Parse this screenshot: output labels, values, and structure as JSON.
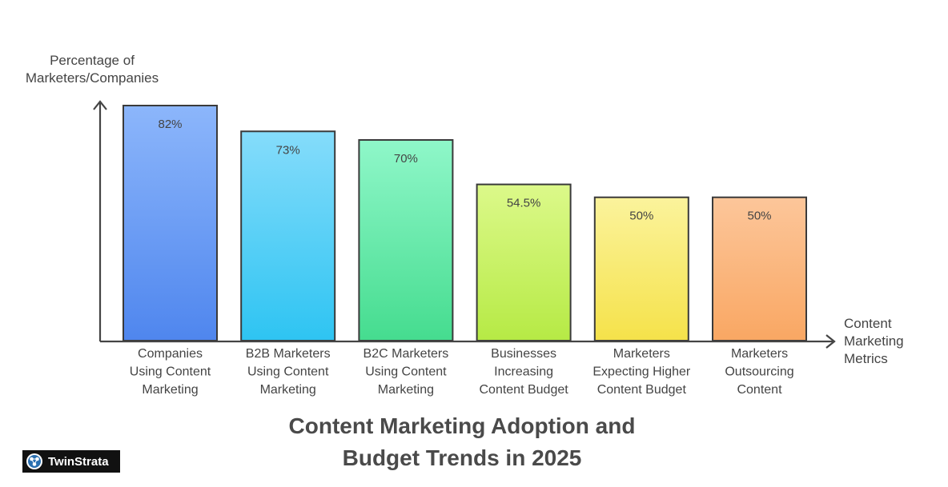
{
  "chart_data": {
    "type": "bar",
    "title": "Content Marketing Adoption and Budget Trends in 2025",
    "ylabel": "Percentage of Marketers/Companies",
    "xlabel": "Content Marketing Metrics",
    "ylim": [
      0,
      82
    ],
    "grid": false,
    "categories": [
      "Companies Using Content Marketing",
      "B2B Marketers Using Content Marketing",
      "B2C Marketers Using Content Marketing",
      "Businesses Increasing Content Budget",
      "Marketers Expecting Higher Content Budget",
      "Marketers Outsourcing Content"
    ],
    "values": [
      82,
      73,
      70,
      54.5,
      50,
      50
    ],
    "value_labels": [
      "82%",
      "73%",
      "70%",
      "54.5%",
      "50%",
      "50%"
    ],
    "category_lines": [
      [
        "Companies",
        "Using Content",
        "Marketing"
      ],
      [
        "B2B Marketers",
        "Using Content",
        "Marketing"
      ],
      [
        "B2C Marketers",
        "Using Content",
        "Marketing"
      ],
      [
        "Businesses",
        "Increasing",
        "Content Budget"
      ],
      [
        "Marketers",
        "Expecting Higher",
        "Content Budget"
      ],
      [
        "Marketers",
        "Outsourcing",
        "Content"
      ]
    ],
    "colors": [
      [
        "#8cb6fb",
        "#4f86ee"
      ],
      [
        "#85dcfb",
        "#2ec4f2"
      ],
      [
        "#8ff7c9",
        "#45dc8f"
      ],
      [
        "#dcf98a",
        "#b6ea45"
      ],
      [
        "#fbf39c",
        "#f5e24a"
      ],
      [
        "#fcc69a",
        "#f9a763"
      ]
    ]
  },
  "header": {
    "ylabel_line1": "Percentage of",
    "ylabel_line2": "Marketers/Companies",
    "xlabel_line1": "Content",
    "xlabel_line2": "Marketing",
    "xlabel_line3": "Metrics",
    "title_line1": "Content Marketing Adoption and",
    "title_line2": "Budget Trends in 2025"
  },
  "brand": {
    "name": "TwinStrata",
    "icon": "twinstrata-logo-icon"
  }
}
